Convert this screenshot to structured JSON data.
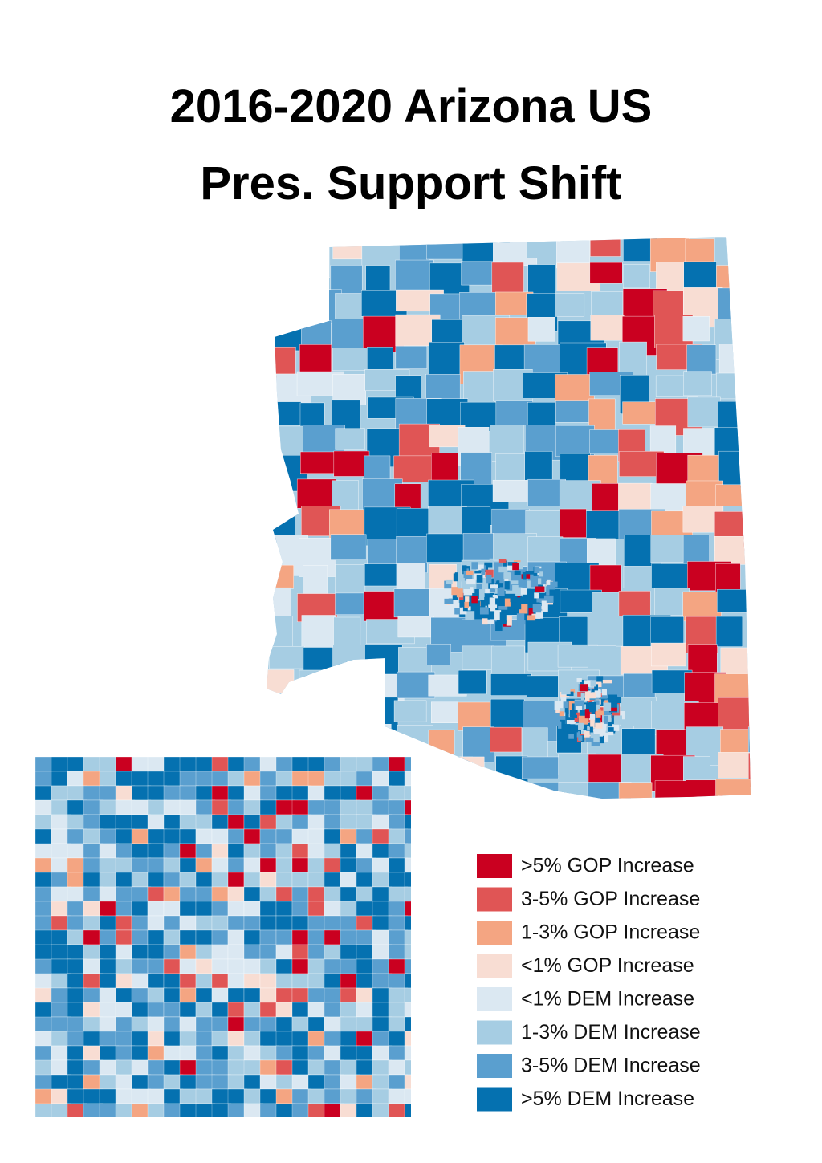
{
  "title_lines": [
    "2016-2020 Arizona US",
    "Pres. Support Shift"
  ],
  "legend": [
    {
      "label": ">5% GOP Increase",
      "color": "#ca0020"
    },
    {
      "label": "3-5% GOP Increase",
      "color": "#e05555"
    },
    {
      "label": "1-3% GOP Increase",
      "color": "#f4a582"
    },
    {
      "label": "<1% GOP Increase",
      "color": "#f8ddd3"
    },
    {
      "label": "<1% DEM Increase",
      "color": "#dbe8f2"
    },
    {
      "label": "1-3% DEM Increase",
      "color": "#a6cde3"
    },
    {
      "label": "3-5% DEM Increase",
      "color": "#5a9fcf"
    },
    {
      "label": ">5% DEM Increase",
      "color": "#0571b0"
    }
  ]
}
